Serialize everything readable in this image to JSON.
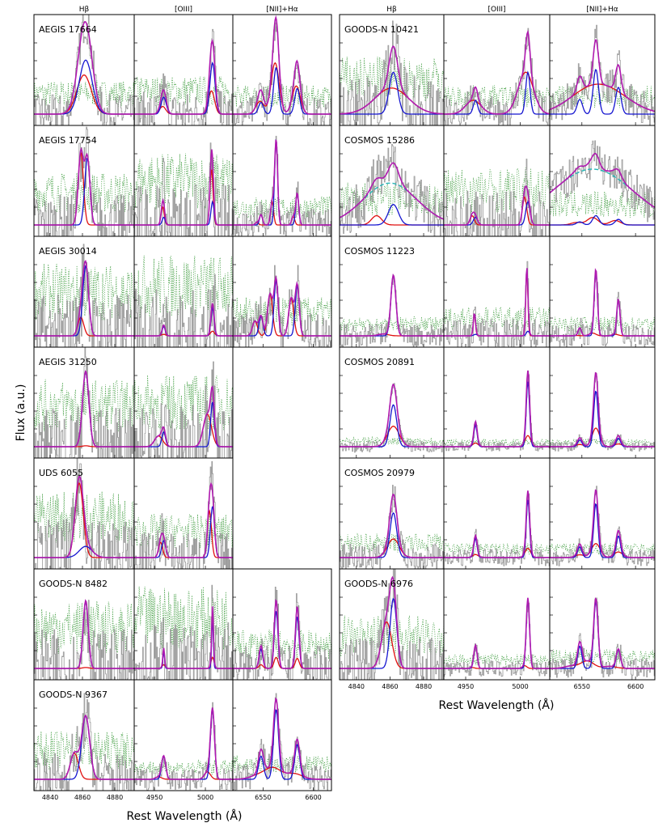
{
  "y_label": "Flux (a.u.)",
  "x_label": "Rest Wavelength (Å)",
  "column_headers": [
    "Hβ",
    "[OIII]",
    "[NII]+Hα"
  ],
  "colors": {
    "data": "#9a9a9a",
    "sky": "#3a9a3a",
    "total": "#b01ab0",
    "narrow": "#1515d0",
    "broad": "#e01010",
    "extra": "#22b5b5"
  },
  "chart_data": {
    "type": "line",
    "y_label": "Flux (a.u.)",
    "x_label": "Rest Wavelength (Å)",
    "panels": [
      {
        "name": "Hβ",
        "xlim": [
          4830,
          4892
        ],
        "xticks": [
          4840,
          4860,
          4880
        ],
        "lines": [
          {
            "name": "Hβ",
            "x": 4862
          }
        ]
      },
      {
        "name": "[OIII]",
        "xlim": [
          4930,
          5027
        ],
        "xticks": [
          4950,
          5000
        ],
        "lines": [
          {
            "name": "[OIII]4959",
            "x": 4959
          },
          {
            "name": "[OIII]5007",
            "x": 5007
          }
        ]
      },
      {
        "name": "[NII]+Hα",
        "xlim": [
          6520,
          6618
        ],
        "xticks": [
          6550,
          6600
        ],
        "lines": [
          {
            "name": "[NII]6548",
            "x": 6548
          },
          {
            "name": "Hα",
            "x": 6563
          },
          {
            "name": "[NII]6584",
            "x": 6584
          }
        ]
      }
    ],
    "series_names": [
      "observed spectrum",
      "sky/noise",
      "total fit",
      "narrow component",
      "broad/outflow component",
      "additional broad component"
    ],
    "galaxies": [
      {
        "label": "AEGIS 17664",
        "block": "left",
        "row": 0,
        "fits": [
          {
            "a": 0.58,
            "d": 0,
            "s": 4,
            "ba": 0.42,
            "bd": -1,
            "bs": 4.5,
            "ratios": [
              1
            ],
            "noise": 0.35
          },
          {
            "a": 0.55,
            "d": 0,
            "s": 2.5,
            "ba": 0.25,
            "bd": -1,
            "bs": 3,
            "ratios": [
              0.33,
              1
            ],
            "noise": 0.4
          },
          {
            "a": 0.5,
            "d": 0,
            "s": 2.5,
            "ba": 0.55,
            "bd": -1,
            "bs": 4,
            "ratios": [
              0.25,
              1,
              0.55
            ],
            "noise": 0.3
          }
        ]
      },
      {
        "label": "AEGIS 17754",
        "block": "left",
        "row": 1,
        "fits": [
          {
            "a": 0.72,
            "d": 1,
            "s": 1.6,
            "ba": 0.78,
            "bd": -3,
            "bs": 1.6,
            "ratios": [
              1
            ],
            "noise": 0.55
          },
          {
            "a": 0.25,
            "d": 0,
            "s": 1.5,
            "ba": 0.6,
            "bd": -1,
            "bs": 1.5,
            "ratios": [
              0.33,
              1
            ],
            "noise": 0.75
          },
          {
            "a": 0.92,
            "d": 0,
            "s": 1.5,
            "ba": 0.25,
            "bd": -4,
            "bs": 1.5,
            "ratios": [
              0.12,
              1,
              0.37
            ],
            "noise": 0.3
          }
        ]
      },
      {
        "label": "AEGIS 30014",
        "block": "left",
        "row": 2,
        "fits": [
          {
            "a": 0.75,
            "d": 0,
            "s": 1.8,
            "ba": 0.2,
            "bd": -3,
            "bs": 1.8,
            "ratios": [
              1
            ],
            "noise": 0.75
          },
          {
            "a": 0.3,
            "d": 0,
            "s": 1.5,
            "ba": 0.05,
            "bd": 0,
            "bs": 2,
            "ratios": [
              0.33,
              1
            ],
            "noise": 0.85
          },
          {
            "a": 0.6,
            "d": 0,
            "s": 2,
            "ba": 0.45,
            "bd": -6,
            "bs": 2.5,
            "ratios": [
              0.35,
              1,
              0.9
            ],
            "noise": 0.4
          }
        ]
      },
      {
        "label": "AEGIS 31250",
        "block": "left",
        "row": 3,
        "fits": [
          {
            "a": 0.8,
            "d": 0,
            "s": 2,
            "ba": 0.01,
            "bd": 0,
            "bs": 2,
            "ratios": [
              1
            ],
            "noise": 0.7
          },
          {
            "a": 0.48,
            "d": 0,
            "s": 1.8,
            "ba": 0.35,
            "bd": -5,
            "bs": 4,
            "ratios": [
              0.33,
              1
            ],
            "noise": 0.75
          },
          null
        ]
      },
      {
        "label": "UDS 6055",
        "block": "left",
        "row": 4,
        "fits": [
          {
            "a": 0.12,
            "d": 0,
            "s": 4,
            "ba": 0.8,
            "bd": -4,
            "bs": 2.5,
            "ratios": [
              1
            ],
            "noise": 0.7
          },
          {
            "a": 0.55,
            "d": 0,
            "s": 2,
            "ba": 0.5,
            "bd": -3,
            "bs": 2,
            "ratios": [
              0.33,
              1
            ],
            "noise": 0.45
          },
          null
        ]
      },
      {
        "label": "GOODS-N 8482",
        "block": "left",
        "row": 5,
        "fits": [
          {
            "a": 0.72,
            "d": 0,
            "s": 1.6,
            "ba": 0.01,
            "bd": 0,
            "bs": 2,
            "ratios": [
              1
            ],
            "noise": 0.7
          },
          {
            "a": 0.55,
            "d": 0,
            "s": 0.8,
            "ba": 0.12,
            "bd": 0,
            "bs": 1.5,
            "ratios": [
              0.33,
              1
            ],
            "noise": 0.85
          },
          {
            "a": 0.62,
            "d": 0,
            "s": 1.8,
            "ba": 0.12,
            "bd": 0,
            "bs": 2,
            "ratios": [
              0.33,
              1,
              0.9
            ],
            "noise": 0.4
          }
        ]
      },
      {
        "label": "GOODS-N 9367",
        "block": "left",
        "row": 6,
        "fits": [
          {
            "a": 0.68,
            "d": 0,
            "s": 2.5,
            "ba": 0.28,
            "bd": -7,
            "bs": 2.5,
            "ratios": [
              1
            ],
            "noise": 0.5
          },
          {
            "a": 0.75,
            "d": 0,
            "s": 2,
            "ba": 0.08,
            "bd": -5,
            "bs": 3,
            "ratios": [
              0.33,
              1
            ],
            "noise": 0.2
          },
          {
            "a": 0.75,
            "d": 0,
            "s": 2.5,
            "ba": 0.12,
            "bd": -3,
            "bs": 8,
            "ratios": [
              0.33,
              1,
              0.5
            ],
            "noise": 0.25
          }
        ]
      },
      {
        "label": "GOODS-N 10421",
        "block": "right",
        "row": 0,
        "fits": [
          {
            "a": 0.45,
            "d": 0,
            "s": 2.5,
            "ba": 0.28,
            "bd": -1,
            "bs": 10,
            "ratios": [
              1
            ],
            "noise": 0.6
          },
          {
            "a": 0.45,
            "d": 0,
            "s": 2,
            "ba": 0.45,
            "bd": -2,
            "bs": 7,
            "ratios": [
              0.33,
              1
            ],
            "noise": 0.3
          },
          {
            "a": 0.48,
            "d": 0,
            "s": 2.5,
            "ba": 0.2,
            "bd": -1,
            "bs": 20,
            "ratios": [
              0.33,
              1,
              0.6
            ],
            "noise": 0.3
          }
        ]
      },
      {
        "label": "COSMOS 15286",
        "block": "right",
        "row": 1,
        "fits": [
          {
            "a": 0.22,
            "d": 0,
            "s": 3,
            "ba": 0.1,
            "bd": -10,
            "bs": 3,
            "ratios": [
              1
            ],
            "noise": 0.45,
            "extra": {
              "a": 0.45,
              "d": -2,
              "s": 16
            }
          },
          {
            "a": 0.25,
            "d": 0,
            "s": 2,
            "ba": 0.3,
            "bd": -3,
            "bs": 2,
            "ratios": [
              0.33,
              1
            ],
            "noise": 0.6
          },
          {
            "a": 0.1,
            "d": 0,
            "s": 3,
            "ba": 0.08,
            "bd": -3,
            "bs": 5,
            "ratios": [
              0.33,
              1,
              0.6
            ],
            "noise": 0.35,
            "extra": {
              "a": 0.6,
              "d": -3,
              "s": 38
            }
          }
        ]
      },
      {
        "label": "COSMOS 11223",
        "block": "right",
        "row": 2,
        "fits": [
          {
            "a": 0.65,
            "d": 0,
            "s": 1.5,
            "ba": 0.02,
            "bd": -6,
            "bs": 3,
            "ratios": [
              1
            ],
            "noise": 0.2
          },
          {
            "a": 0.05,
            "d": 0,
            "s": 1.5,
            "ba": 0.7,
            "bd": -1,
            "bs": 1,
            "ratios": [
              0.33,
              1
            ],
            "noise": 0.3
          },
          {
            "a": 0.7,
            "d": 0,
            "s": 1.5,
            "ba": 0.03,
            "bd": -3,
            "bs": 3,
            "ratios": [
              0.12,
              1,
              0.55
            ],
            "noise": 0.2
          }
        ]
      },
      {
        "label": "COSMOS 20891",
        "block": "right",
        "row": 3,
        "fits": [
          {
            "a": 0.45,
            "d": 0,
            "s": 2,
            "ba": 0.22,
            "bd": 0,
            "bs": 3.5,
            "ratios": [
              1
            ],
            "noise": 0.1
          },
          {
            "a": 0.7,
            "d": 0,
            "s": 1.5,
            "ba": 0.12,
            "bd": 0,
            "bs": 2.5,
            "ratios": [
              0.33,
              1
            ],
            "noise": 0.08
          },
          {
            "a": 0.6,
            "d": 0,
            "s": 2,
            "ba": 0.2,
            "bd": 0,
            "bs": 3.5,
            "ratios": [
              0.12,
              1,
              0.15
            ],
            "noise": 0.08
          }
        ]
      },
      {
        "label": "COSMOS 20979",
        "block": "right",
        "row": 4,
        "fits": [
          {
            "a": 0.48,
            "d": 0,
            "s": 2,
            "ba": 0.2,
            "bd": 0,
            "bs": 3.5,
            "ratios": [
              1
            ],
            "noise": 0.25
          },
          {
            "a": 0.62,
            "d": 0,
            "s": 1.5,
            "ba": 0.1,
            "bd": 0,
            "bs": 2.5,
            "ratios": [
              0.33,
              1
            ],
            "noise": 0.15
          },
          {
            "a": 0.58,
            "d": 0,
            "s": 2,
            "ba": 0.15,
            "bd": 0,
            "bs": 4,
            "ratios": [
              0.2,
              1,
              0.4
            ],
            "noise": 0.15
          }
        ]
      },
      {
        "label": "GOODS-N 6976",
        "block": "right",
        "row": 5,
        "fits": [
          {
            "a": 0.75,
            "d": 0,
            "s": 2,
            "ba": 0.5,
            "bd": -4,
            "bs": 3,
            "ratios": [
              1
            ],
            "noise": 0.55
          },
          {
            "a": 0.75,
            "d": 0,
            "s": 1.5,
            "ba": 0.03,
            "bd": -3,
            "bs": 2,
            "ratios": [
              0.33,
              1
            ],
            "noise": 0.15
          },
          {
            "a": 0.72,
            "d": 0,
            "s": 2,
            "ba": 0.08,
            "bd": -8,
            "bs": 6,
            "ratios": [
              0.33,
              1,
              0.28
            ],
            "noise": 0.2
          }
        ]
      }
    ]
  }
}
